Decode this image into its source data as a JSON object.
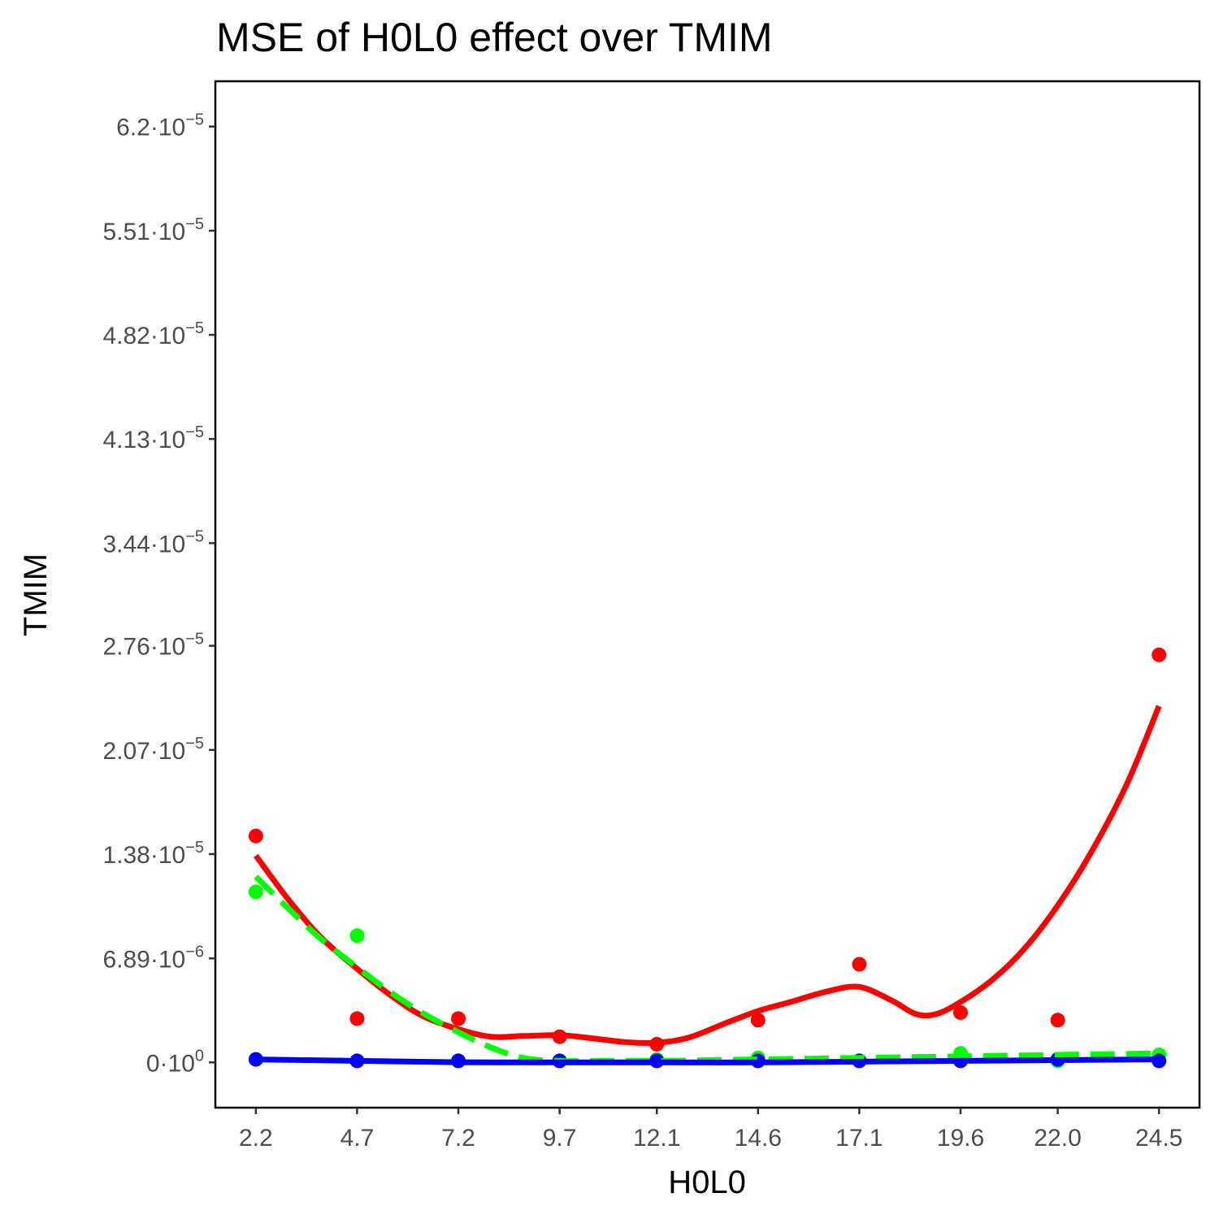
{
  "chart_data": {
    "type": "scatter",
    "title": "MSE of H0L0 effect over  TMIM",
    "xlabel": "H0L0",
    "ylabel": "TMIM",
    "x": [
      2.2,
      4.7,
      7.2,
      9.7,
      12.1,
      14.6,
      17.1,
      19.6,
      22.0,
      24.5
    ],
    "x_tick_labels": [
      "2.2",
      "4.7",
      "7.2",
      "9.7",
      "12.1",
      "14.6",
      "17.1",
      "19.6",
      "22.0",
      "24.5"
    ],
    "y_ticks": [
      {
        "value": 0,
        "mantissa": "0",
        "exponent": "0"
      },
      {
        "value": 6.89e-06,
        "mantissa": "6.89",
        "exponent": "−6"
      },
      {
        "value": 1.38e-05,
        "mantissa": "1.38",
        "exponent": "−5"
      },
      {
        "value": 2.07e-05,
        "mantissa": "2.07",
        "exponent": "−5"
      },
      {
        "value": 2.76e-05,
        "mantissa": "2.76",
        "exponent": "−5"
      },
      {
        "value": 3.44e-05,
        "mantissa": "3.44",
        "exponent": "−5"
      },
      {
        "value": 4.13e-05,
        "mantissa": "4.13",
        "exponent": "−5"
      },
      {
        "value": 4.82e-05,
        "mantissa": "4.82",
        "exponent": "−5"
      },
      {
        "value": 5.51e-05,
        "mantissa": "5.51",
        "exponent": "−5"
      },
      {
        "value": 6.2e-05,
        "mantissa": "6.2",
        "exponent": "−5"
      }
    ],
    "xlim": [
      1.2,
      25.5
    ],
    "ylim": [
      -3e-06,
      6.5e-05
    ],
    "grid": false,
    "legend": "none",
    "series": [
      {
        "color": "#ff0000",
        "line_style": "solid",
        "points": [
          1.5e-05,
          2.9e-06,
          2.9e-06,
          1.7e-06,
          1.2e-06,
          2.8e-06,
          6.5e-06,
          3.3e-06,
          2.8e-06,
          2.7e-05
        ],
        "smooth": [
          [
            2.2,
            1.37e-05
          ],
          [
            3.0,
            1.08e-05
          ],
          [
            3.8,
            8.3e-06
          ],
          [
            4.7,
            6.2e-06
          ],
          [
            5.5,
            4.5e-06
          ],
          [
            6.3,
            3.1e-06
          ],
          [
            7.2,
            2.2e-06
          ],
          [
            8.0,
            1.7e-06
          ],
          [
            8.8,
            1.75e-06
          ],
          [
            9.7,
            1.8e-06
          ],
          [
            10.5,
            1.6e-06
          ],
          [
            11.3,
            1.35e-06
          ],
          [
            12.1,
            1.3e-06
          ],
          [
            12.9,
            1.65e-06
          ],
          [
            13.8,
            2.6e-06
          ],
          [
            14.6,
            3.4e-06
          ],
          [
            15.4,
            4e-06
          ],
          [
            16.3,
            4.7e-06
          ],
          [
            17.1,
            5e-06
          ],
          [
            17.9,
            4.1e-06
          ],
          [
            18.5,
            3.2e-06
          ],
          [
            19.0,
            3.2e-06
          ],
          [
            19.6,
            4e-06
          ],
          [
            20.4,
            5.5e-06
          ],
          [
            21.2,
            7.6e-06
          ],
          [
            22.0,
            1.04e-05
          ],
          [
            22.8,
            1.38e-05
          ],
          [
            23.7,
            1.84e-05
          ],
          [
            24.5,
            2.36e-05
          ]
        ]
      },
      {
        "color": "#00ff00",
        "line_style": "dashed",
        "points": [
          1.13e-05,
          8.4e-06,
          1e-07,
          1e-07,
          2e-07,
          3e-07,
          1e-07,
          6e-07,
          1e-07,
          5e-07
        ],
        "smooth": [
          [
            2.2,
            1.23e-05
          ],
          [
            3.0,
            1.02e-05
          ],
          [
            3.8,
            8.2e-06
          ],
          [
            4.7,
            6.3e-06
          ],
          [
            5.5,
            4.7e-06
          ],
          [
            6.3,
            3.3e-06
          ],
          [
            7.2,
            2e-06
          ],
          [
            8.0,
            1e-06
          ],
          [
            8.8,
            3e-07
          ],
          [
            9.7,
            1e-07
          ],
          [
            11.0,
            1e-07
          ],
          [
            12.1,
            1e-07
          ],
          [
            13.4,
            1.5e-07
          ],
          [
            14.6,
            2e-07
          ],
          [
            15.9,
            2.5e-07
          ],
          [
            17.1,
            3e-07
          ],
          [
            18.4,
            3.5e-07
          ],
          [
            19.6,
            4e-07
          ],
          [
            20.8,
            4.5e-07
          ],
          [
            22.0,
            5e-07
          ],
          [
            23.3,
            5.5e-07
          ],
          [
            24.5,
            6e-07
          ]
        ]
      },
      {
        "color": "#0000ff",
        "line_style": "solid",
        "points": [
          2e-07,
          1e-07,
          1e-07,
          1e-07,
          1e-07,
          1e-07,
          1e-07,
          1e-07,
          2e-07,
          1e-07
        ],
        "smooth": [
          [
            2.2,
            2e-07
          ],
          [
            4.7,
            1e-07
          ],
          [
            7.2,
            1e-08
          ],
          [
            9.7,
            0
          ],
          [
            12.1,
            0
          ],
          [
            14.6,
            0
          ],
          [
            17.1,
            5e-08
          ],
          [
            19.6,
            1e-07
          ],
          [
            22.0,
            1.5e-07
          ],
          [
            24.5,
            2e-07
          ]
        ]
      }
    ]
  }
}
